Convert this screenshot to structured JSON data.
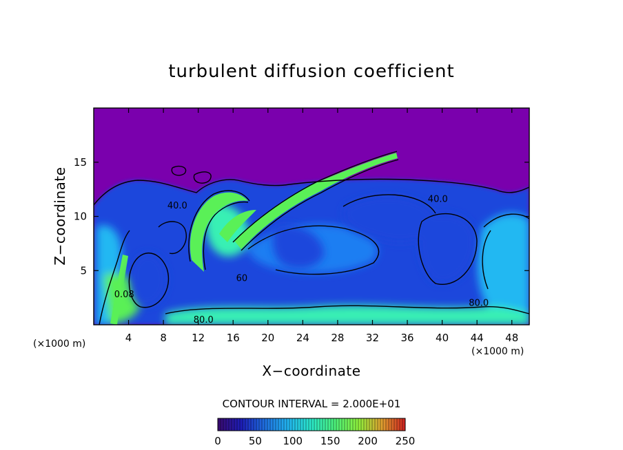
{
  "chart_data": {
    "type": "heatmap",
    "title": "turbulent diffusion coefficient",
    "xlabel": "X−coordinate",
    "ylabel": "Z−coordinate",
    "x_unit": "(×1000 m)",
    "z_unit": "(×1000 m)",
    "xlim": [
      0,
      50
    ],
    "ylim": [
      0,
      20
    ],
    "x_ticks": [
      4,
      8,
      12,
      16,
      20,
      24,
      28,
      32,
      36,
      40,
      44,
      48
    ],
    "y_ticks": [
      5,
      10,
      15
    ],
    "contour_interval_label": "CONTOUR INTERVAL = 2.000E+01",
    "contour_labels": [
      {
        "text": "40.0",
        "x": 9.6,
        "z": 11.0
      },
      {
        "text": "40.0",
        "x": 39.5,
        "z": 11.6
      },
      {
        "text": "0.08",
        "x": 3.5,
        "z": 2.8
      },
      {
        "text": "80.0",
        "x": 12.6,
        "z": 0.45
      },
      {
        "text": "80.0",
        "x": 44.2,
        "z": 2.0
      },
      {
        "text": "60",
        "x": 17.0,
        "z": 4.3
      }
    ],
    "colorbar": {
      "min": 0,
      "max": 250,
      "ticks": [
        0,
        50,
        100,
        150,
        200,
        250
      ],
      "colors": [
        "#3a0a6e",
        "#1d1db8",
        "#1f6fe0",
        "#22b4f0",
        "#2be8c8",
        "#4cf07a",
        "#8ef03c",
        "#e0a030",
        "#d02020"
      ]
    },
    "field_colors": {
      "quiet_air": "#7a00ad",
      "low": "#1a47dc",
      "mid": "#1e7ef2",
      "high": "#23b8f2",
      "very_high": "#37f0b4",
      "peak": "#5af057"
    }
  }
}
